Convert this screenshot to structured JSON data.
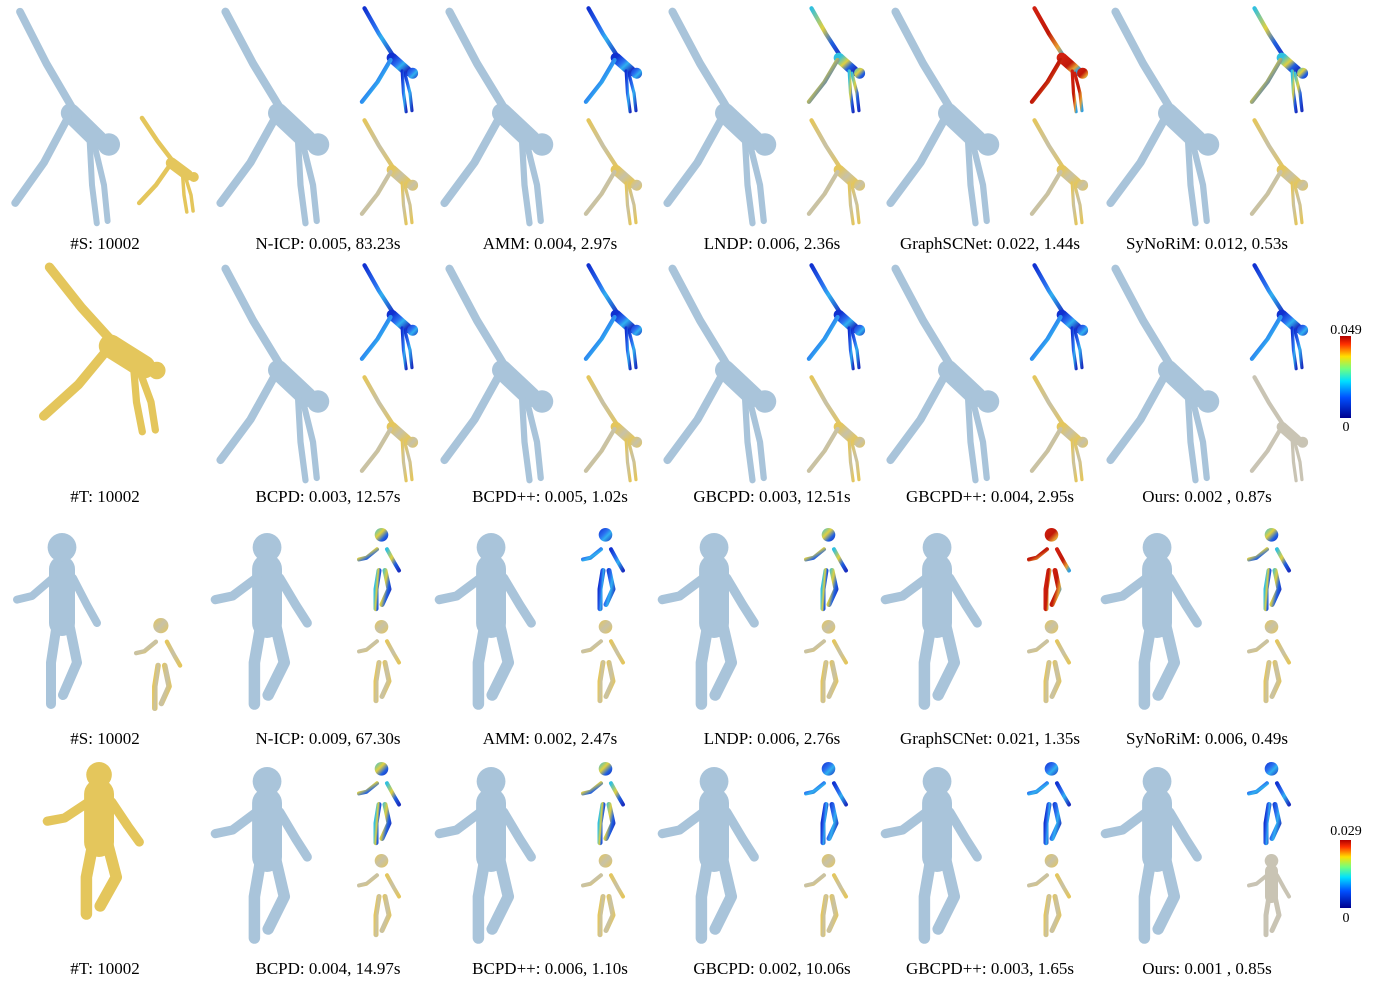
{
  "rows": [
    [
      "#S: 10002",
      "N-ICP: 0.005, 83.23s",
      "AMM: 0.004, 2.97s",
      "LNDP: 0.006, 2.36s",
      "GraphSCNet: 0.022, 1.44s",
      "SyNoRiM: 0.012, 0.53s"
    ],
    [
      "#T: 10002",
      "BCPD: 0.003, 12.57s",
      "BCPD++: 0.005, 1.02s",
      "GBCPD: 0.003, 12.51s",
      "GBCPD++: 0.004, 2.95s",
      "Ours: 0.002 ,  0.87s"
    ],
    [
      "#S: 10002",
      "N-ICP: 0.009, 67.30s",
      "AMM: 0.002, 2.47s",
      "LNDP: 0.006, 2.76s",
      "GraphSCNet: 0.021, 1.35s",
      "SyNoRiM: 0.006, 0.49s"
    ],
    [
      "#T: 10002",
      "BCPD: 0.004, 14.97s",
      "BCPD++: 0.006, 1.10s",
      "GBCPD: 0.002, 10.06s",
      "GBCPD++: 0.003, 1.65s",
      "Ours: 0.001 ,  0.85s"
    ]
  ],
  "colorbars": [
    {
      "max": "0.049",
      "min": "0"
    },
    {
      "max": "0.029",
      "min": "0"
    }
  ]
}
